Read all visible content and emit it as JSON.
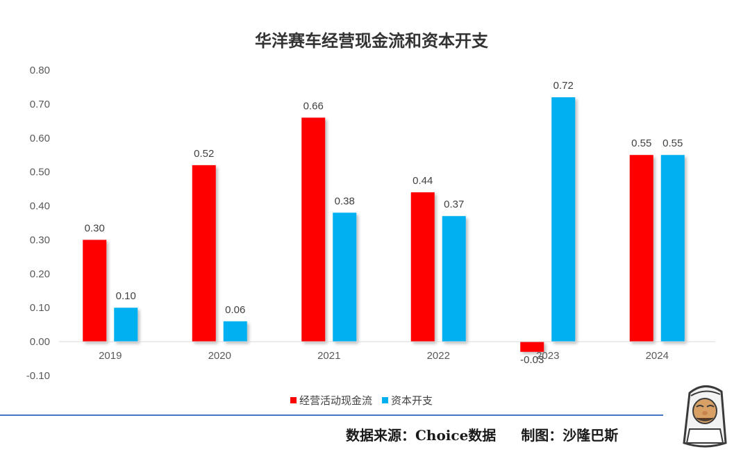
{
  "chart_data": {
    "type": "bar",
    "title": "华洋赛车经营现金流和资本开支",
    "categories": [
      "2019",
      "2020",
      "2021",
      "2022",
      "2023",
      "2024"
    ],
    "series": [
      {
        "name": "经营活动现金流",
        "values": [
          0.3,
          0.52,
          0.66,
          0.44,
          -0.03,
          0.55
        ],
        "labels": [
          "0.30",
          "0.52",
          "0.66",
          "0.44",
          "-0.03",
          "0.55"
        ],
        "color": "#FF0000"
      },
      {
        "name": "资本开支",
        "values": [
          0.1,
          0.06,
          0.38,
          0.37,
          0.72,
          0.55
        ],
        "labels": [
          "0.10",
          "0.06",
          "0.38",
          "0.37",
          "0.72",
          "0.55"
        ],
        "color": "#00B0F0"
      }
    ],
    "ylim": [
      -0.1,
      0.8
    ],
    "yticks": [
      "0.80",
      "0.70",
      "0.60",
      "0.50",
      "0.40",
      "0.30",
      "0.20",
      "0.10",
      "0.00",
      "-0.10"
    ],
    "legend_position": "bottom",
    "grid": false
  },
  "footer": {
    "source": "数据来源：Choice数据",
    "author": "制图：沙隆巴斯"
  },
  "icons": [
    "cartoon-mascot-icon"
  ],
  "colors": {
    "divider": "#4472C4",
    "axis": "#D9D9D9"
  }
}
